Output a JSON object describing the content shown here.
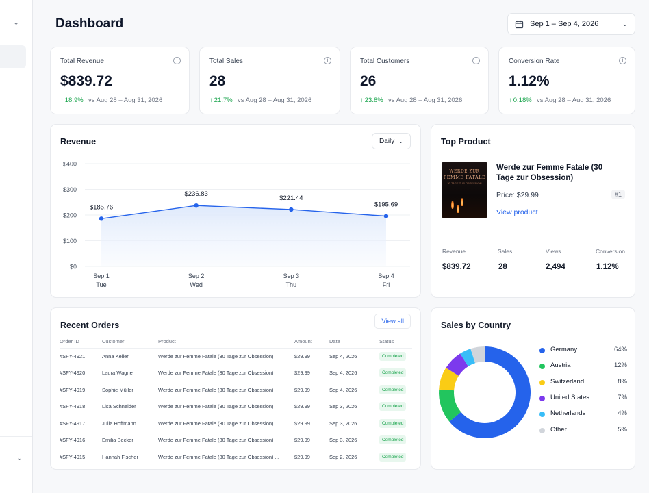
{
  "header": {
    "title": "Dashboard",
    "date_range": "Sep 1 – Sep 4, 2026"
  },
  "kpis": [
    {
      "label": "Total Revenue",
      "value": "$839.72",
      "delta": "18.9%",
      "compare": "vs Aug 28 – Aug 31, 2026"
    },
    {
      "label": "Total Sales",
      "value": "28",
      "delta": "21.7%",
      "compare": "vs Aug 28 – Aug 31, 2026"
    },
    {
      "label": "Total Customers",
      "value": "26",
      "delta": "23.8%",
      "compare": "vs Aug 28 – Aug 31, 2026"
    },
    {
      "label": "Conversion Rate",
      "value": "1.12%",
      "delta": "0.18%",
      "compare": "vs Aug 28 – Aug 31, 2026"
    }
  ],
  "revenue_card": {
    "title": "Revenue",
    "interval": "Daily"
  },
  "chart_data": {
    "type": "area",
    "title": "Revenue",
    "categories": [
      "Sep 1",
      "Sep 2",
      "Sep 3",
      "Sep 4"
    ],
    "weekdays": [
      "Tue",
      "Wed",
      "Thu",
      "Fri"
    ],
    "values": [
      185.76,
      236.83,
      221.44,
      195.69
    ],
    "value_labels": [
      "$185.76",
      "$236.83",
      "$221.44",
      "$195.69"
    ],
    "y_ticks": [
      "$400",
      "$300",
      "$200",
      "$100",
      "$0"
    ],
    "ylim": [
      0,
      400
    ],
    "grid": true,
    "color": "#2563eb"
  },
  "top_product": {
    "title": "Top Product",
    "name": "Werde zur Femme Fatale (30 Tage zur Obsession)",
    "cover_line1": "WERDE ZUR",
    "cover_line2": "FEMME FATALE",
    "cover_line3": "30 TAGE ZUR OBSESSION",
    "price": "Price: $29.99",
    "link": "View product",
    "rank": "#1",
    "stats": [
      {
        "label": "Revenue",
        "value": "$839.72"
      },
      {
        "label": "Sales",
        "value": "28"
      },
      {
        "label": "Views",
        "value": "2,494"
      },
      {
        "label": "Conversion",
        "value": "1.12%"
      }
    ]
  },
  "orders": {
    "title": "Recent Orders",
    "view_all": "View all",
    "columns": [
      "Order ID",
      "Customer",
      "Product",
      "Amount",
      "Date",
      "Status"
    ],
    "rows": [
      [
        "#SFY-4921",
        "Anna Keller",
        "Werde zur Femme Fatale (30 Tage zur Obsession)",
        "$29.99",
        "Sep 4, 2026",
        "Completed"
      ],
      [
        "#SFY-4920",
        "Laura Wagner",
        "Werde zur Femme Fatale (30 Tage zur Obsession)",
        "$29.99",
        "Sep 4, 2026",
        "Completed"
      ],
      [
        "#SFY-4919",
        "Sophie Müller",
        "Werde zur Femme Fatale (30 Tage zur Obsession)",
        "$29.99",
        "Sep 4, 2026",
        "Completed"
      ],
      [
        "#SFY-4918",
        "Lisa Schneider",
        "Werde zur Femme Fatale (30 Tage zur Obsession)",
        "$29.99",
        "Sep 3, 2026",
        "Completed"
      ],
      [
        "#SFY-4917",
        "Julia Hoffmann",
        "Werde zur Femme Fatale (30 Tage zur Obsession)",
        "$29.99",
        "Sep 3, 2026",
        "Completed"
      ],
      [
        "#SFY-4916",
        "Emilia Becker",
        "Werde zur Femme Fatale (30 Tage zur Obsession)",
        "$29.99",
        "Sep 3, 2026",
        "Completed"
      ],
      [
        "#SFY-4915",
        "Hannah Fischer",
        "Werde zur Femme Fatale (30 Tage zur Obsession) ...",
        "$29.99",
        "Sep 2, 2026",
        "Completed"
      ]
    ]
  },
  "sales_by_country": {
    "title": "Sales by Country",
    "chart_type": "donut",
    "items": [
      {
        "name": "Germany",
        "pct": "64%",
        "value": 64,
        "color": "#2563eb"
      },
      {
        "name": "Austria",
        "pct": "12%",
        "value": 12,
        "color": "#22c55e"
      },
      {
        "name": "Switzerland",
        "pct": "8%",
        "value": 8,
        "color": "#facc15"
      },
      {
        "name": "United States",
        "pct": "7%",
        "value": 7,
        "color": "#7c3aed"
      },
      {
        "name": "Netherlands",
        "pct": "4%",
        "value": 4,
        "color": "#38bdf8"
      },
      {
        "name": "Other",
        "pct": "5%",
        "value": 5,
        "color": "#d1d5db"
      }
    ]
  },
  "icons": [
    "chevron-down-icon",
    "calendar-icon",
    "info-icon",
    "arrow-up-icon"
  ]
}
